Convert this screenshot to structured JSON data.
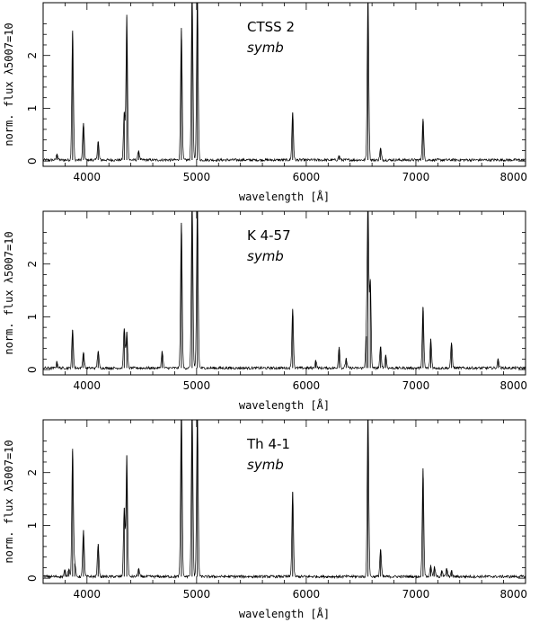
{
  "chart_data": [
    {
      "type": "line",
      "title": "CTSS 2",
      "subtitle": "symb",
      "xlabel": "wavelength  [Å]",
      "ylabel": "norm. flux λ5007=10",
      "xlim": [
        3600,
        8000
      ],
      "ylim": [
        -0.1,
        3.0
      ],
      "xticks": [
        4000,
        5000,
        6000,
        7000,
        8000
      ],
      "yticks": [
        0,
        1,
        2
      ],
      "grid": false,
      "baseline": 0.02,
      "lines": [
        {
          "x": 3727,
          "y": 0.12
        },
        {
          "x": 3869,
          "y": 2.45
        },
        {
          "x": 3968,
          "y": 0.7
        },
        {
          "x": 4102,
          "y": 0.35
        },
        {
          "x": 4340,
          "y": 0.9
        },
        {
          "x": 4363,
          "y": 2.75
        },
        {
          "x": 4471,
          "y": 0.18
        },
        {
          "x": 4861,
          "y": 2.5
        },
        {
          "x": 4959,
          "y": 3.2
        },
        {
          "x": 5007,
          "y": 3.2
        },
        {
          "x": 5876,
          "y": 0.9
        },
        {
          "x": 6300,
          "y": 0.08
        },
        {
          "x": 6563,
          "y": 3.2
        },
        {
          "x": 6678,
          "y": 0.22
        },
        {
          "x": 7065,
          "y": 0.78
        }
      ]
    },
    {
      "type": "line",
      "title": "K 4-57",
      "subtitle": "symb",
      "xlabel": "wavelength  [Å]",
      "ylabel": "norm. flux λ5007=10",
      "xlim": [
        3600,
        8000
      ],
      "ylim": [
        -0.1,
        3.0
      ],
      "xticks": [
        4000,
        5000,
        6000,
        7000,
        8000
      ],
      "yticks": [
        0,
        1,
        2
      ],
      "grid": false,
      "baseline": 0.03,
      "lines": [
        {
          "x": 3727,
          "y": 0.12
        },
        {
          "x": 3869,
          "y": 0.72
        },
        {
          "x": 3968,
          "y": 0.3
        },
        {
          "x": 4102,
          "y": 0.32
        },
        {
          "x": 4340,
          "y": 0.75
        },
        {
          "x": 4363,
          "y": 0.68
        },
        {
          "x": 4686,
          "y": 0.32
        },
        {
          "x": 4861,
          "y": 2.75
        },
        {
          "x": 4959,
          "y": 3.2
        },
        {
          "x": 5007,
          "y": 3.2
        },
        {
          "x": 5876,
          "y": 1.12
        },
        {
          "x": 6087,
          "y": 0.15
        },
        {
          "x": 6300,
          "y": 0.4
        },
        {
          "x": 6364,
          "y": 0.18
        },
        {
          "x": 6548,
          "y": 0.6
        },
        {
          "x": 6563,
          "y": 3.2
        },
        {
          "x": 6584,
          "y": 1.65
        },
        {
          "x": 6678,
          "y": 0.4
        },
        {
          "x": 6725,
          "y": 0.25
        },
        {
          "x": 7065,
          "y": 1.15
        },
        {
          "x": 7136,
          "y": 0.55
        },
        {
          "x": 7325,
          "y": 0.48
        },
        {
          "x": 7751,
          "y": 0.18
        }
      ]
    },
    {
      "type": "line",
      "title": "Th 4-1",
      "subtitle": "symb",
      "xlabel": "wavelength  [Å]",
      "ylabel": "norm. flux λ5007=10",
      "xlim": [
        3600,
        8000
      ],
      "ylim": [
        -0.1,
        3.0
      ],
      "xticks": [
        4000,
        5000,
        6000,
        7000,
        8000
      ],
      "yticks": [
        0,
        1,
        2
      ],
      "grid": false,
      "baseline": 0.03,
      "lines": [
        {
          "x": 3798,
          "y": 0.12
        },
        {
          "x": 3835,
          "y": 0.15
        },
        {
          "x": 3869,
          "y": 2.42
        },
        {
          "x": 3889,
          "y": 0.25
        },
        {
          "x": 3968,
          "y": 0.88
        },
        {
          "x": 4102,
          "y": 0.62
        },
        {
          "x": 4340,
          "y": 1.3
        },
        {
          "x": 4363,
          "y": 2.3
        },
        {
          "x": 4471,
          "y": 0.15
        },
        {
          "x": 4861,
          "y": 3.2
        },
        {
          "x": 4959,
          "y": 3.2
        },
        {
          "x": 5007,
          "y": 3.2
        },
        {
          "x": 5876,
          "y": 1.6
        },
        {
          "x": 6563,
          "y": 3.2
        },
        {
          "x": 6678,
          "y": 0.52
        },
        {
          "x": 7065,
          "y": 2.05
        },
        {
          "x": 7136,
          "y": 0.22
        },
        {
          "x": 7170,
          "y": 0.18
        },
        {
          "x": 7236,
          "y": 0.12
        },
        {
          "x": 7281,
          "y": 0.15
        },
        {
          "x": 7325,
          "y": 0.1
        }
      ]
    }
  ]
}
